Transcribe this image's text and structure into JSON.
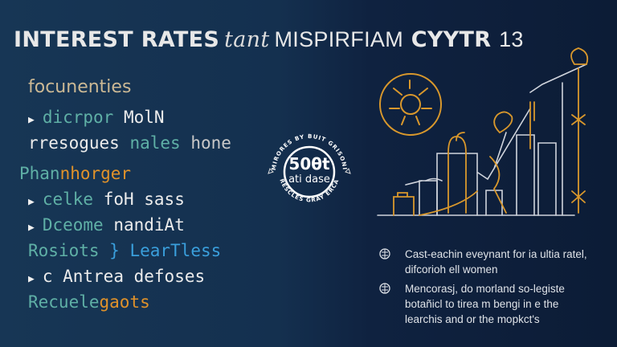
{
  "title": {
    "bold_1": "INTEREST RATES",
    "script": "tant",
    "thin": "MISPIRFIAM",
    "bold_2": "CYYTR",
    "thin_2": "13"
  },
  "list": {
    "heading": "focunenties",
    "l1": {
      "a": "dicrpor",
      "b": "MolN"
    },
    "l2": {
      "a": "rresogues",
      "b": "nales",
      "c": "hone"
    },
    "l3": {
      "a": "Phan",
      "b": "nhorger"
    },
    "l4": {
      "a": "celke",
      "b": "foH sass"
    },
    "l5": {
      "a": "Dceome",
      "b": "nandiAt"
    },
    "l6": {
      "a": "Rosiots",
      "b": "} LearTless"
    },
    "l7": {
      "a": "c Antrea defoses"
    },
    "l8": {
      "a": "Recuele",
      "b": "gaots"
    }
  },
  "badge": {
    "ring_top": "MIRORES BY BUIT GRISONI",
    "ring_bottom": "RESCLES GRAY ERCA",
    "number": "50θt",
    "subtitle": "ati dase"
  },
  "notes": [
    {
      "icon": "globe-icon",
      "text": "Cast-eachin eveynant for ia ultia ratel, difcorioh ell women"
    },
    {
      "icon": "globe-icon",
      "text": "Mencorasj, do morland so-legiste botañicl to tirea m bengi in e the learchis and or the mopkct's"
    }
  ],
  "colors": {
    "teal": "#5fb0a6",
    "orange": "#e0922a",
    "blue": "#3a9fdc",
    "background": "#14304f"
  }
}
